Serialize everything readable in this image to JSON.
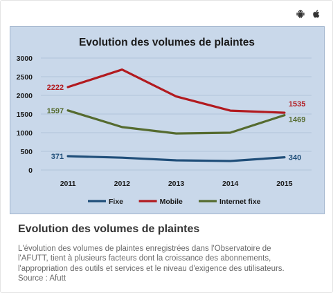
{
  "icons": {
    "android": "android-icon",
    "apple": "apple-icon"
  },
  "chart_data": {
    "type": "line",
    "title": "Evolution des volumes de plaintes",
    "categories": [
      "2011",
      "2012",
      "2013",
      "2014",
      "2015"
    ],
    "ylim": [
      0,
      3000
    ],
    "yticks": [
      0,
      500,
      1000,
      1500,
      2000,
      2500,
      3000
    ],
    "grid": true,
    "legend_position": "bottom",
    "series": [
      {
        "name": "Fixe",
        "color": "#1f4e79",
        "values": [
          371,
          330,
          260,
          240,
          340
        ],
        "labels": [
          {
            "index": 0,
            "text": "371"
          },
          {
            "index": 4,
            "text": "340"
          }
        ]
      },
      {
        "name": "Mobile",
        "color": "#b21a1f",
        "values": [
          2222,
          2690,
          1970,
          1590,
          1535
        ],
        "labels": [
          {
            "index": 0,
            "text": "2222"
          },
          {
            "index": 4,
            "text": "1535"
          }
        ]
      },
      {
        "name": "Internet fixe",
        "color": "#556b2f",
        "values": [
          1597,
          1150,
          980,
          1000,
          1469
        ],
        "labels": [
          {
            "index": 0,
            "text": "1597"
          },
          {
            "index": 4,
            "text": "1469"
          }
        ]
      }
    ]
  },
  "caption": {
    "title": "Evolution des volumes de plaintes",
    "lines": [
      "L'évolution des volumes de plaintes enregistrées dans l'Observatoire de",
      "l'AFUTT, tient à plusieurs facteurs dont la croissance des abonnements,",
      "l'appropriation des outils et services et le niveau d'exigence des utilisateurs.",
      "Source : Afutt"
    ]
  }
}
